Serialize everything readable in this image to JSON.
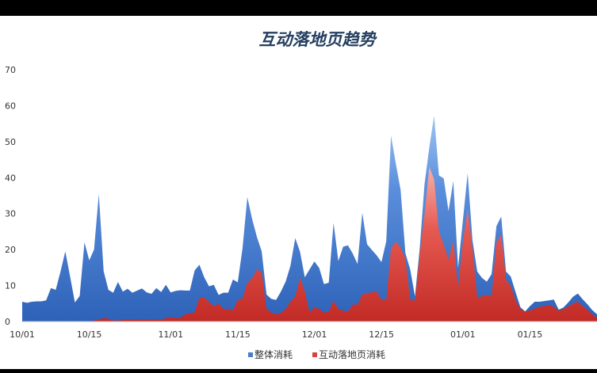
{
  "chart_data": {
    "type": "area",
    "title": "互动落地页趋势",
    "xlabel": "",
    "ylabel": "",
    "ylim": [
      0,
      70
    ],
    "grid": false,
    "legend": "bottom",
    "x_tick_labels": [
      "10/01",
      "10/15",
      "11/01",
      "11/15",
      "12/01",
      "12/15",
      "01/01",
      "01/15"
    ],
    "y_tick_labels": [
      "0",
      "10",
      "20",
      "30",
      "40",
      "50",
      "60",
      "70"
    ],
    "series": [
      {
        "name": "整体消耗",
        "color": "#4a7cc9",
        "values": [
          5.5,
          5.2,
          5.5,
          5.6,
          5.6,
          5.9,
          9.3,
          8.8,
          13.9,
          19.5,
          12.5,
          5.3,
          7.1,
          22,
          17,
          20,
          35.5,
          14,
          8.8,
          8,
          11,
          8.3,
          9.1,
          8,
          8.6,
          9.2,
          8.1,
          7.7,
          9.3,
          8.2,
          10.2,
          8.1,
          8.5,
          8.7,
          8.6,
          8.6,
          14.2,
          15.8,
          12.3,
          9.8,
          10.2,
          7.4,
          8,
          8,
          11.7,
          10.9,
          20.4,
          34.6,
          28.5,
          23.5,
          19.5,
          7.5,
          6.3,
          6,
          8.3,
          11.1,
          15.5,
          23.2,
          19.4,
          12.3,
          14.5,
          16.7,
          14.9,
          10.4,
          10.8,
          27.4,
          16.8,
          20.8,
          21.2,
          18.9,
          16,
          30.2,
          21.5,
          19.9,
          18.4,
          16.5,
          22.3,
          51.7,
          43.9,
          36.6,
          19,
          14.5,
          7,
          20.5,
          38.3,
          48.5,
          57.3,
          40.6,
          39.8,
          30.7,
          39.1,
          14.9,
          28.1,
          41.3,
          22.6,
          13.9,
          12.1,
          11.1,
          13.2,
          26.5,
          29.2,
          13.9,
          12.5,
          8.2,
          4,
          2.8,
          4.3,
          5.5,
          5.5,
          5.7,
          5.9,
          6.1,
          3.3,
          3.9,
          5.3,
          6.9,
          7.8,
          6.2,
          4.8,
          3.2,
          2
        ]
      },
      {
        "name": "互动落地页消耗",
        "color": "#e0403c",
        "values": [
          0,
          0,
          0,
          0,
          0,
          0,
          0,
          0,
          0,
          0,
          0,
          0,
          0,
          0,
          0,
          0.3,
          0.5,
          1,
          0.8,
          0.3,
          0.3,
          0.4,
          0.5,
          0.4,
          0.6,
          0.6,
          0.4,
          0.5,
          0.7,
          0.5,
          0.9,
          1.2,
          1,
          1,
          2,
          2.3,
          2.5,
          6.7,
          6.6,
          5.5,
          4.2,
          5,
          3.5,
          3.5,
          3.2,
          6,
          6.4,
          10.8,
          12,
          14.5,
          13.6,
          3.5,
          2.5,
          2,
          2.3,
          3.5,
          5.5,
          7,
          12.2,
          8.4,
          2.5,
          4,
          3.5,
          2.5,
          2.7,
          5.8,
          3.5,
          3,
          2.8,
          4.7,
          4.7,
          7.5,
          7.8,
          8.2,
          8.4,
          6,
          6,
          20.3,
          22.2,
          20.5,
          17.5,
          6.1,
          5.8,
          18.8,
          30,
          42.9,
          39.6,
          24.9,
          21.4,
          17.2,
          22.5,
          9.5,
          22.2,
          31.2,
          20.2,
          6.7,
          7,
          7.5,
          7,
          22,
          24.1,
          11.6,
          9.8,
          5.9,
          3.5,
          2.8,
          3.1,
          3.6,
          4.1,
          4.3,
          4.6,
          4.1,
          3,
          3.5,
          4.2,
          5,
          5.5,
          4.3,
          3.3,
          2,
          1
        ]
      }
    ]
  }
}
